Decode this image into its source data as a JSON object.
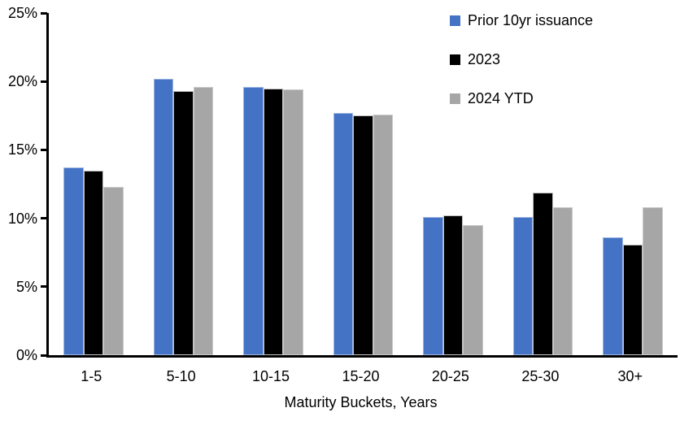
{
  "chart_data": {
    "type": "bar",
    "title": "",
    "xlabel": "Maturity Buckets, Years",
    "ylabel": "",
    "ylim": [
      0,
      25
    ],
    "ytick_step": 5,
    "ytick_suffix": "%",
    "grid": false,
    "legend_position": "top-right",
    "categories": [
      "1-5",
      "5-10",
      "10-15",
      "15-20",
      "20-25",
      "25-30",
      "30+"
    ],
    "series": [
      {
        "name": "Prior 10yr issuance",
        "color": "#4472C4",
        "edge_color": "#9DB6E2",
        "values": [
          13.7,
          20.2,
          19.6,
          17.7,
          10.1,
          10.1,
          8.6
        ]
      },
      {
        "name": "2023",
        "color": "#000000",
        "edge_color": "#BFBFBF",
        "values": [
          13.5,
          19.3,
          19.5,
          17.5,
          10.2,
          11.9,
          8.1
        ]
      },
      {
        "name": "2024 YTD",
        "color": "#A6A6A6",
        "edge_color": "#C9C9C9",
        "values": [
          12.3,
          19.6,
          19.4,
          17.6,
          9.5,
          10.8,
          10.8
        ]
      }
    ],
    "axis_color": "#000000"
  }
}
